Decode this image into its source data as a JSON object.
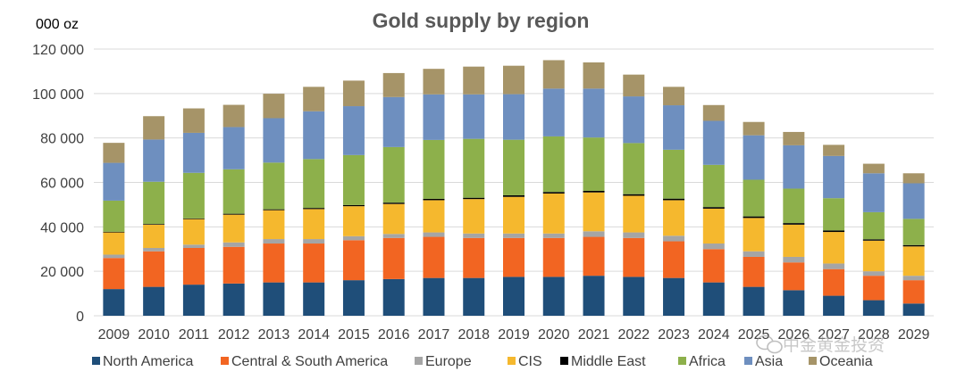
{
  "chart_data": {
    "type": "bar",
    "stacked": true,
    "title": "Gold supply by region",
    "unit_label": "000 oz",
    "xlabel": "",
    "ylabel": "",
    "ylim": [
      0,
      120000
    ],
    "y_ticks": [
      {
        "value": 0,
        "label": "0"
      },
      {
        "value": 20000,
        "label": "20 000"
      },
      {
        "value": 40000,
        "label": "40 000"
      },
      {
        "value": 60000,
        "label": "60 000"
      },
      {
        "value": 80000,
        "label": "80 000"
      },
      {
        "value": 100000,
        "label": "100 000"
      },
      {
        "value": 120000,
        "label": "120 000"
      }
    ],
    "grid": true,
    "legend_position": "bottom",
    "categories": [
      "2009",
      "2010",
      "2011",
      "2012",
      "2013",
      "2014",
      "2015",
      "2016",
      "2017",
      "2018",
      "2019",
      "2020",
      "2021",
      "2022",
      "2023",
      "2024",
      "2025",
      "2026",
      "2027",
      "2028",
      "2029"
    ],
    "series": [
      {
        "name": "North America",
        "color": "#1f4e79",
        "values": [
          12000,
          13000,
          14000,
          14500,
          15000,
          15000,
          16000,
          16500,
          17000,
          17000,
          17500,
          17500,
          18000,
          17500,
          17000,
          15000,
          13000,
          11500,
          9000,
          7000,
          5500
        ]
      },
      {
        "name": "Central & South America",
        "color": "#f26522",
        "values": [
          14000,
          16000,
          16500,
          16500,
          17500,
          17500,
          18000,
          18500,
          18500,
          18000,
          17500,
          17500,
          17500,
          17500,
          16500,
          15000,
          13500,
          12500,
          12000,
          11000,
          10500
        ]
      },
      {
        "name": "Europe",
        "color": "#a5a5a5",
        "values": [
          1500,
          1500,
          1500,
          2000,
          2000,
          2000,
          1800,
          1800,
          2000,
          2000,
          2000,
          2000,
          2500,
          2500,
          2500,
          2500,
          2500,
          2500,
          2500,
          2000,
          2000
        ]
      },
      {
        "name": "CIS",
        "color": "#f5b82e",
        "values": [
          10000,
          10500,
          11500,
          12500,
          13000,
          13500,
          13500,
          13500,
          14500,
          15500,
          16500,
          18000,
          17500,
          16500,
          16000,
          15700,
          15000,
          14500,
          14200,
          13800,
          13200
        ]
      },
      {
        "name": "Middle East",
        "color": "#000000",
        "values": [
          300,
          300,
          300,
          400,
          400,
          500,
          500,
          600,
          600,
          600,
          700,
          700,
          700,
          700,
          700,
          700,
          700,
          700,
          700,
          600,
          600
        ]
      },
      {
        "name": "Africa",
        "color": "#8db04b",
        "values": [
          14000,
          19000,
          20500,
          20000,
          21000,
          22000,
          22500,
          25000,
          26500,
          26500,
          25000,
          25000,
          24000,
          23000,
          22000,
          19000,
          16500,
          15500,
          14500,
          12200,
          11800
        ]
      },
      {
        "name": "Asia",
        "color": "#6e8fbf",
        "values": [
          17000,
          19000,
          18000,
          19000,
          20000,
          21500,
          22000,
          22500,
          20500,
          20000,
          20500,
          21500,
          22000,
          21000,
          20000,
          19800,
          20000,
          19500,
          19000,
          17500,
          16000
        ]
      },
      {
        "name": "Oceania",
        "color": "#a69468",
        "values": [
          9000,
          10500,
          11000,
          10000,
          11000,
          11000,
          11500,
          10800,
          11500,
          12500,
          12800,
          12800,
          11800,
          9800,
          8300,
          7100,
          6000,
          6000,
          5000,
          4300,
          4500
        ]
      }
    ]
  },
  "watermark": "中金黄金投资"
}
